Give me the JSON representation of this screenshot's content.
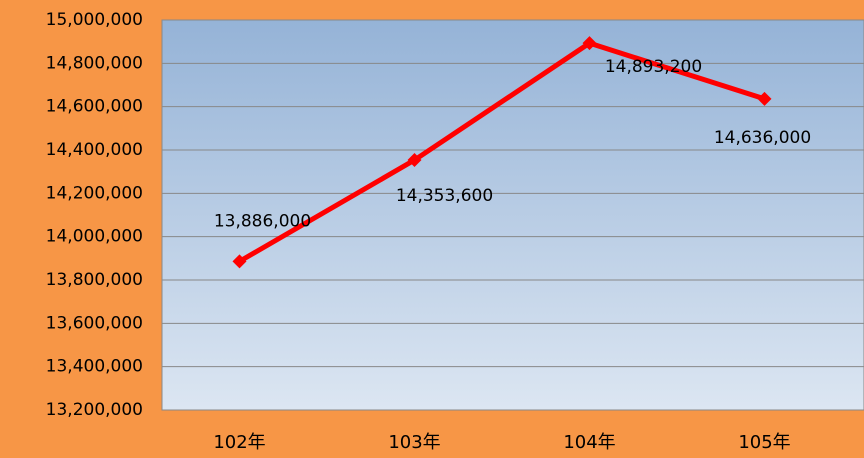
{
  "chart_data": {
    "type": "line",
    "categories": [
      "102年",
      "103年",
      "104年",
      "105年"
    ],
    "series": [
      {
        "name": null,
        "color": "#ff0000",
        "values": [
          13886000,
          14353600,
          14893200,
          14636000
        ],
        "value_labels": [
          "13,886,000",
          "14,353,600",
          "14,893,200",
          "14,636,000"
        ]
      }
    ],
    "ylim": [
      13200000,
      15000000
    ],
    "yticks": [
      {
        "value": 13200000,
        "label": "13,200,000"
      },
      {
        "value": 13400000,
        "label": "13,400,000"
      },
      {
        "value": 13600000,
        "label": "13,600,000"
      },
      {
        "value": 13800000,
        "label": "13,800,000"
      },
      {
        "value": 14000000,
        "label": "14,000,000"
      },
      {
        "value": 14200000,
        "label": "14,200,000"
      },
      {
        "value": 14400000,
        "label": "14,400,000"
      },
      {
        "value": 14600000,
        "label": "14,600,000"
      },
      {
        "value": 14800000,
        "label": "14,800,000"
      },
      {
        "value": 15000000,
        "label": "15,000,000"
      }
    ],
    "grid": true
  }
}
